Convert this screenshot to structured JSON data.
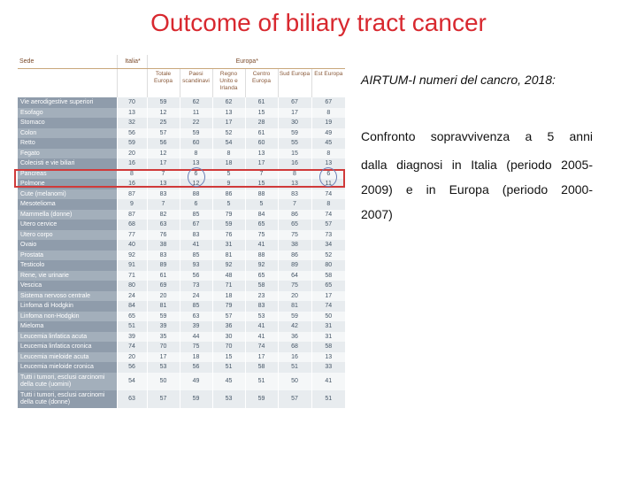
{
  "title": "Outcome of biliary tract cancer",
  "note": {
    "heading": "AIRTUM-I numeri del cancro, 2018:",
    "lines": [
      "Confronto sopravvivenza a 5 anni",
      "dalla diagnosi in Italia (periodo 2005-",
      "2009) e in Europa (periodo 2000-",
      "2007)"
    ]
  },
  "table": {
    "col_site": "Sede",
    "col_italy": "Italia*",
    "col_europe": "Europa*",
    "sub_headers": [
      "Totale Europa",
      "Paesi scandinavi",
      "Regno Unito e Irlanda",
      "Centro Europa",
      "Sud Europa",
      "Est Europa"
    ],
    "rows": [
      {
        "site": "Vie aerodigestive superiori",
        "v": [
          "70",
          "59",
          "62",
          "62",
          "61",
          "67",
          "67"
        ]
      },
      {
        "site": "Esofago",
        "v": [
          "13",
          "12",
          "11",
          "13",
          "15",
          "17",
          "8"
        ]
      },
      {
        "site": "Stomaco",
        "v": [
          "32",
          "25",
          "22",
          "17",
          "28",
          "30",
          "19"
        ]
      },
      {
        "site": "Colon",
        "v": [
          "56",
          "57",
          "59",
          "52",
          "61",
          "59",
          "49"
        ]
      },
      {
        "site": "Retto",
        "v": [
          "59",
          "56",
          "60",
          "54",
          "60",
          "55",
          "45"
        ]
      },
      {
        "site": "Fegato",
        "v": [
          "20",
          "12",
          "8",
          "8",
          "13",
          "15",
          "8"
        ]
      },
      {
        "site": "Colecisti e vie biliari",
        "v": [
          "16",
          "17",
          "13",
          "18",
          "17",
          "16",
          "13"
        ]
      },
      {
        "site": "Pancreas",
        "v": [
          "8",
          "7",
          "6",
          "5",
          "7",
          "8",
          "6"
        ]
      },
      {
        "site": "Polmone",
        "v": [
          "16",
          "13",
          "12",
          "9",
          "15",
          "13",
          "11"
        ]
      },
      {
        "site": "Cute (melanomi)",
        "v": [
          "87",
          "83",
          "88",
          "86",
          "88",
          "83",
          "74"
        ]
      },
      {
        "site": "Mesotelioma",
        "v": [
          "9",
          "7",
          "6",
          "5",
          "5",
          "7",
          "8"
        ]
      },
      {
        "site": "Mammella (donne)",
        "v": [
          "87",
          "82",
          "85",
          "79",
          "84",
          "86",
          "74"
        ]
      },
      {
        "site": "Utero cervice",
        "v": [
          "68",
          "63",
          "67",
          "59",
          "65",
          "65",
          "57"
        ]
      },
      {
        "site": "Utero corpo",
        "v": [
          "77",
          "76",
          "83",
          "76",
          "75",
          "75",
          "73"
        ]
      },
      {
        "site": "Ovaio",
        "v": [
          "40",
          "38",
          "41",
          "31",
          "41",
          "38",
          "34"
        ]
      },
      {
        "site": "Prostata",
        "v": [
          "92",
          "83",
          "85",
          "81",
          "88",
          "86",
          "52"
        ]
      },
      {
        "site": "Testicolo",
        "v": [
          "91",
          "89",
          "93",
          "92",
          "92",
          "89",
          "80"
        ]
      },
      {
        "site": "Rene, vie urinarie",
        "v": [
          "71",
          "61",
          "56",
          "48",
          "65",
          "64",
          "58"
        ]
      },
      {
        "site": "Vescica",
        "v": [
          "80",
          "69",
          "73",
          "71",
          "58",
          "75",
          "65"
        ]
      },
      {
        "site": "Sistema nervoso centrale",
        "v": [
          "24",
          "20",
          "24",
          "18",
          "23",
          "20",
          "17"
        ]
      },
      {
        "site": "Linfoma di Hodgkin",
        "v": [
          "84",
          "81",
          "85",
          "79",
          "83",
          "81",
          "74"
        ]
      },
      {
        "site": "Linfoma non-Hodgkin",
        "v": [
          "65",
          "59",
          "63",
          "57",
          "53",
          "59",
          "50"
        ]
      },
      {
        "site": "Mieloma",
        "v": [
          "51",
          "39",
          "39",
          "36",
          "41",
          "42",
          "31"
        ]
      },
      {
        "site": "Leucemia linfatica acuta",
        "v": [
          "39",
          "35",
          "44",
          "30",
          "41",
          "36",
          "31"
        ]
      },
      {
        "site": "Leucemia linfatica cronica",
        "v": [
          "74",
          "70",
          "75",
          "70",
          "74",
          "68",
          "58"
        ]
      },
      {
        "site": "Leucemia mieloide acuta",
        "v": [
          "20",
          "17",
          "18",
          "15",
          "17",
          "16",
          "13"
        ]
      },
      {
        "site": "Leucemia mieloide cronica",
        "v": [
          "56",
          "53",
          "56",
          "51",
          "58",
          "51",
          "33"
        ]
      },
      {
        "site": "Tutti i tumori, esclusi carcinomi della cute (uomini)",
        "v": [
          "54",
          "50",
          "49",
          "45",
          "51",
          "50",
          "41"
        ]
      },
      {
        "site": "Tutti i tumori, esclusi carcinomi della cute (donne)",
        "v": [
          "63",
          "57",
          "59",
          "53",
          "59",
          "57",
          "51"
        ]
      }
    ]
  },
  "highlight_color": "#d03a3a",
  "title_color": "#d8282f"
}
